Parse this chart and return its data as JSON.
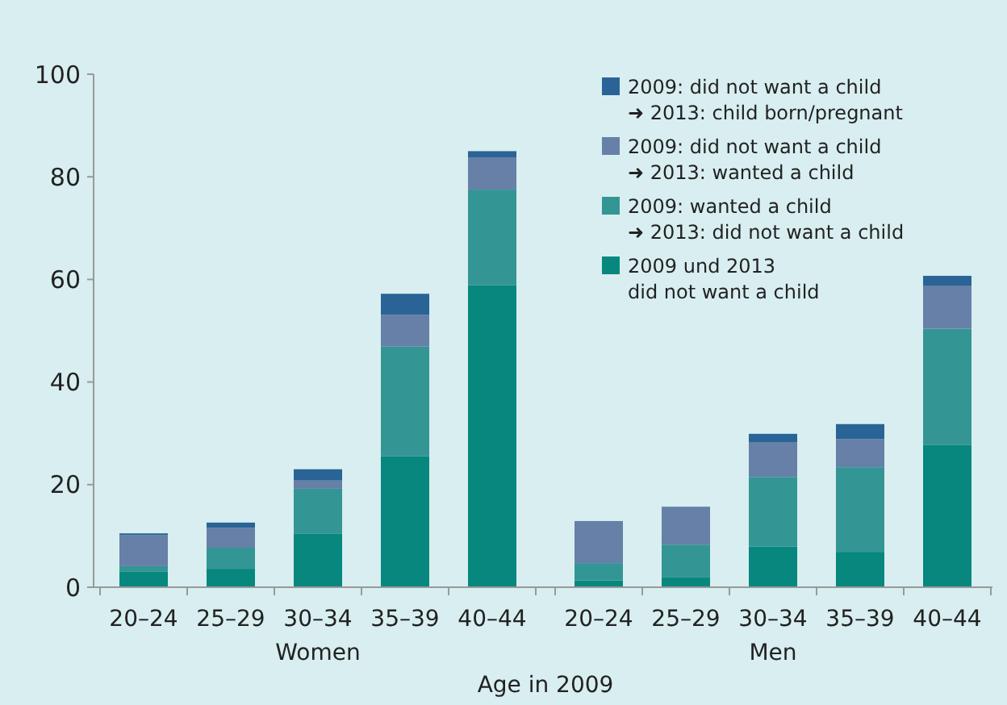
{
  "chart_data": {
    "type": "bar",
    "stacked": true,
    "xlabel": "Age in 2009",
    "categories": [
      "20–24",
      "25–29",
      "30–34",
      "35–39",
      "40–44",
      "20–24",
      "25–29",
      "30–34",
      "35–39",
      "40–44"
    ],
    "series": [
      {
        "name": "2009 und 2013\ndid not want a child",
        "color": "#07877e",
        "values": [
          3.1,
          3.6,
          10.4,
          25.5,
          58.9,
          1.3,
          1.9,
          7.9,
          6.9,
          27.7
        ]
      },
      {
        "name": "2009: wanted a child\n➜ 2013: did not want a child",
        "color": "#339694",
        "values": [
          1.0,
          4.1,
          8.8,
          21.4,
          18.6,
          3.4,
          6.4,
          13.6,
          16.5,
          22.7
        ]
      },
      {
        "name": "2009: did not want a child\n➜ 2013: wanted a child",
        "color": "#6680a8",
        "values": [
          6.1,
          3.9,
          1.6,
          6.2,
          6.3,
          8.2,
          7.4,
          6.8,
          5.5,
          8.4
        ]
      },
      {
        "name": "2009: did not want a child\n➜ 2013: child born/pregnant",
        "color": "#2a6496",
        "values": [
          0.3,
          1.0,
          2.2,
          4.1,
          1.2,
          0,
          0,
          1.6,
          2.9,
          1.9
        ]
      }
    ],
    "annotations": [
      "Women",
      "Men"
    ],
    "ylim": [
      0,
      100
    ],
    "yticks": [
      0,
      20,
      40,
      60,
      80,
      100
    ],
    "grid": false,
    "legend": "top right"
  }
}
